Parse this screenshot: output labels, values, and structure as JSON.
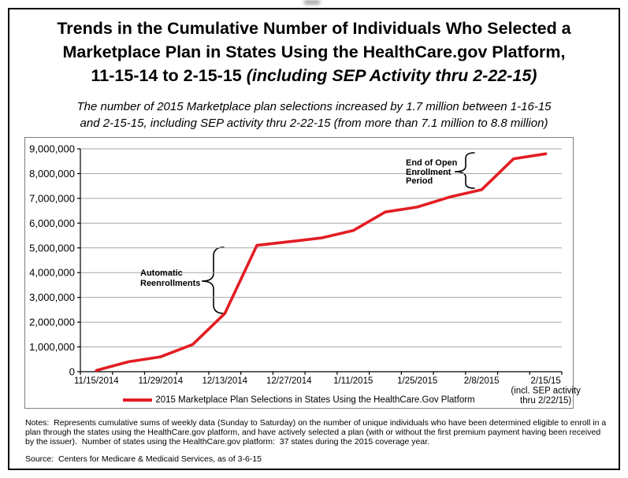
{
  "title": {
    "line1": "Trends in the Cumulative Number of Individuals Who Selected a",
    "line2": "Marketplace Plan in States Using the HealthCare.gov Platform,",
    "line3_plain": "11-15-14 to 2-15-15 ",
    "line3_italic": "(including SEP Activity thru 2-22-15)"
  },
  "subtitle": {
    "line1": "The number of 2015 Marketplace plan selections increased by 1.7 million between 1-16-15",
    "line2": "and 2-15-15, including SEP activity thru 2-22-15 (from more than 7.1 million to 8.8 million)"
  },
  "chart_data": {
    "type": "line",
    "title": "Trends in the Cumulative Number of Individuals Who Selected a Marketplace Plan in States Using the HealthCare.gov Platform, 11-15-14 to 2-15-15 (including SEP Activity thru 2-22-15)",
    "categories": [
      "11/15/2014",
      "",
      "11/29/2014",
      "",
      "12/13/2014",
      "",
      "12/27/2014",
      "",
      "1/11/2015",
      "",
      "1/25/2015",
      "",
      "2/8/2015",
      "",
      "2/15/15"
    ],
    "series": [
      {
        "name": "2015 Marketplace Plan Selections in States Using the HealthCare.Gov Platform",
        "color": "#e21d23",
        "values": [
          50000,
          400000,
          600000,
          1100000,
          2350000,
          5100000,
          5250000,
          5400000,
          5700000,
          6450000,
          6650000,
          7050000,
          7350000,
          8600000,
          8800000
        ]
      }
    ],
    "x_tick_labels": [
      {
        "index": 0,
        "lines": [
          "11/15/2014"
        ]
      },
      {
        "index": 2,
        "lines": [
          "11/29/2014"
        ]
      },
      {
        "index": 4,
        "lines": [
          "12/13/2014"
        ]
      },
      {
        "index": 6,
        "lines": [
          "12/27/2014"
        ]
      },
      {
        "index": 8,
        "lines": [
          "1/11/2015"
        ]
      },
      {
        "index": 10,
        "lines": [
          "1/25/2015"
        ]
      },
      {
        "index": 12,
        "lines": [
          "2/8/2015"
        ]
      },
      {
        "index": 14,
        "lines": [
          "2/15/15",
          "(incl. SEP activity",
          "thru 2/22/15)"
        ]
      }
    ],
    "ylim": [
      0,
      9000000
    ],
    "y_tick_step": 1000000,
    "grid": true,
    "gridline_color": "#a6a6a6",
    "legend_position": "bottom",
    "annotations": [
      {
        "lines": [
          "Automatic",
          "Reenrollments"
        ],
        "value_span": [
          2350000,
          5000000
        ]
      },
      {
        "lines": [
          "End of Open",
          "Enrollment",
          "Period"
        ],
        "value_span": [
          7350000,
          8800000
        ]
      }
    ]
  },
  "notes": {
    "text": "Notes:  Represents cumulative sums of weekly data (Sunday to Saturday) on the number of unique individuals who have been determined eligible to enroll in a plan through the states using the HealthCare.gov platform, and have actively selected a plan (with or without the first premium payment having been received by the issuer).  Number of states using the HealthCare.gov platform:  37 states during the 2015 coverage year.",
    "source": "Source:  Centers for Medicare & Medicaid Services, as of 3-6-15"
  }
}
